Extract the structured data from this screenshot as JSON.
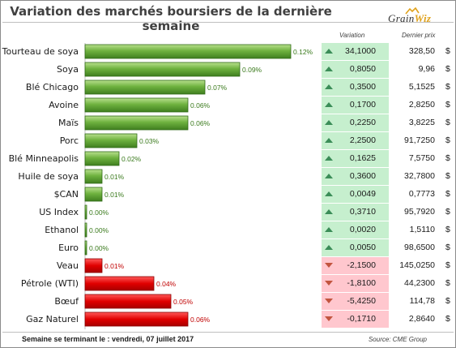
{
  "title": "Variation des marchés boursiers de la dernière semaine",
  "logo": {
    "text_main": "Grain",
    "text_accent": "Wiz"
  },
  "table_headers": {
    "variation": "Variation",
    "price": "Dernier prix"
  },
  "currency_symbol": "$",
  "colors": {
    "positive": "#5aa134",
    "negative": "#e00000",
    "positive_cell": "#c6efce",
    "negative_cell": "#ffc7ce"
  },
  "footer": {
    "left": "Semaine se terminant le : vendredi, 07 juillet 2017",
    "right": "Source: CME Group"
  },
  "chart_data": {
    "type": "bar",
    "orientation": "horizontal",
    "title": "Variation des marchés boursiers de la dernière semaine",
    "categories": [
      "Tourteau de soya",
      "Soya",
      "Blé Chicago",
      "Avoine",
      "Maïs",
      "Porc",
      "Blé Minneapolis",
      "Huile de soya",
      "$CAN",
      "US Index",
      "Ethanol",
      "Euro",
      "Veau",
      "Pétrole (WTI)",
      "Bœuf",
      "Gaz Naturel"
    ],
    "series": [
      {
        "values": [
          0.12,
          0.09,
          0.07,
          0.06,
          0.06,
          0.03,
          0.02,
          0.01,
          0.01,
          0.0,
          0.0,
          0.0,
          0.01,
          0.04,
          0.05,
          0.06
        ]
      }
    ],
    "value_labels": [
      "0.12%",
      "0.09%",
      "0.07%",
      "0.06%",
      "0.06%",
      "0.03%",
      "0.02%",
      "0.01%",
      "0.01%",
      "0.00%",
      "0.00%",
      "0.00%",
      "0.01%",
      "0.04%",
      "0.05%",
      "0.06%"
    ],
    "direction": [
      "up",
      "up",
      "up",
      "up",
      "up",
      "up",
      "up",
      "up",
      "up",
      "up",
      "up",
      "up",
      "down",
      "down",
      "down",
      "down"
    ],
    "variation": [
      "34,1000",
      "0,8050",
      "0,3500",
      "0,1700",
      "0,2250",
      "2,2500",
      "0,1625",
      "0,3600",
      "0,0049",
      "0,3710",
      "0,0020",
      "0,0050",
      "-2,1500",
      "-1,8100",
      "-5,4250",
      "-0,1710"
    ],
    "last_price": [
      "328,50",
      "9,96",
      "5,1525",
      "2,8250",
      "3,8225",
      "91,7250",
      "7,5750",
      "32,7800",
      "0,7773",
      "95,7920",
      "1,5110",
      "98,6500",
      "145,0250",
      "44,2300",
      "114,78",
      "2,8640"
    ],
    "xlim": [
      0,
      0.12
    ],
    "grid": false,
    "legend": "none"
  }
}
